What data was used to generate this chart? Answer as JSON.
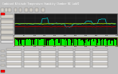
{
  "bg_color": "#c0c0c0",
  "title_bar_color": "#000080",
  "title_text": "Combined Altitude Temperature Humidity Chamber NI LabVIEW - cmenvirosystems",
  "title_text_color": "#ffffff",
  "chart1_bg": "#1a1a1a",
  "chart2_bg": "#0a0a00",
  "panel_color": "#d4d0c8",
  "border_color": "#808080",
  "num_points": 80
}
